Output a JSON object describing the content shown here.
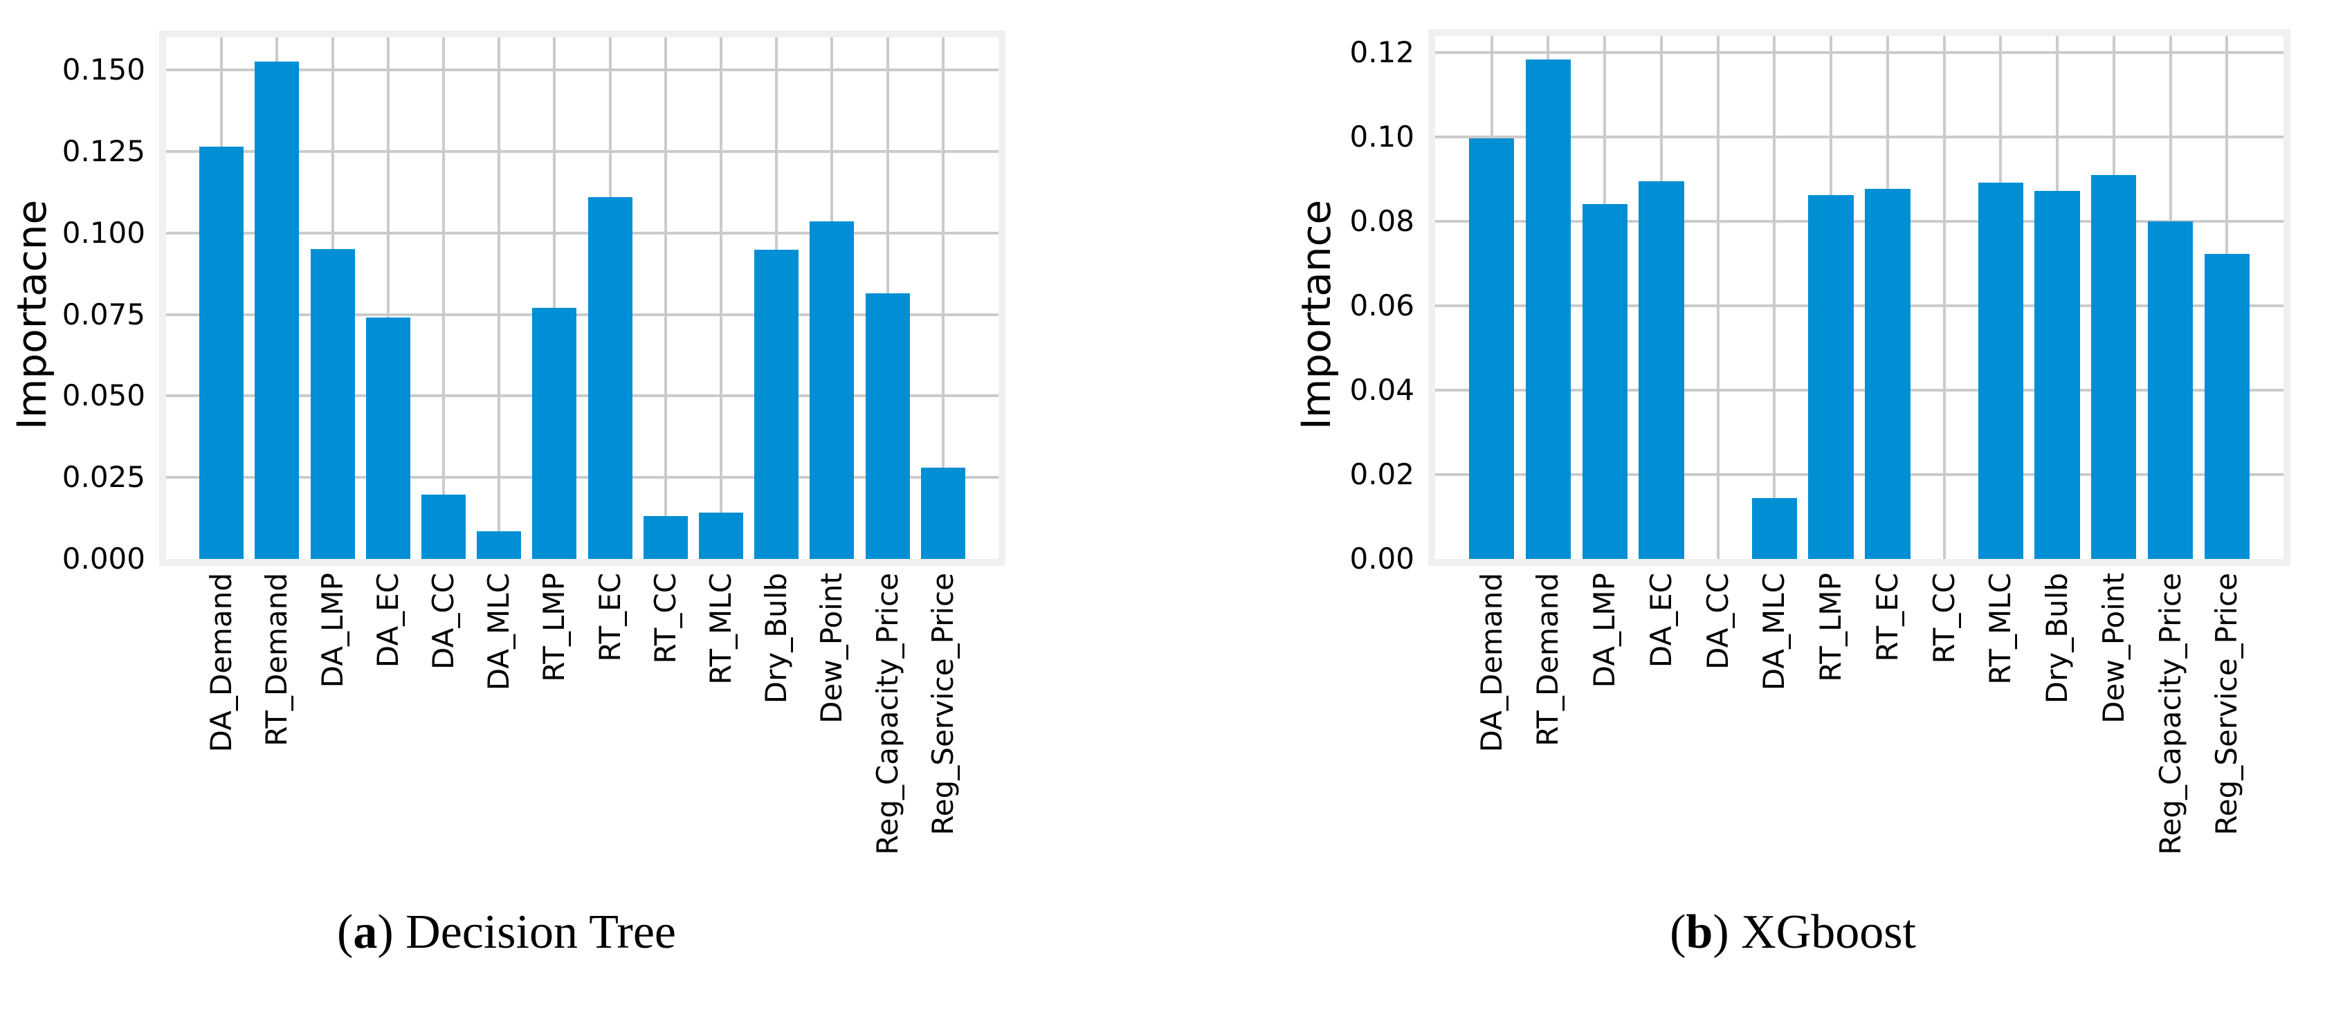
{
  "figure": {
    "background": "#ffffff",
    "bar_color": "#008fd5",
    "grid_color": "#cbcbcb",
    "frame_color": "#f0f0f0",
    "text_color": "#000000"
  },
  "chart_data": [
    {
      "id": "decision-tree",
      "type": "bar",
      "caption": "(a) Decision Tree",
      "caption_parts": {
        "open": "(",
        "letter": "a",
        "rest": ") Decision Tree"
      },
      "ylabel": "Importacne",
      "xlabel": "",
      "grid": true,
      "legend_position": "none",
      "categories": [
        "DA_Demand",
        "RT_Demand",
        "DA_LMP",
        "DA_EC",
        "DA_CC",
        "DA_MLC",
        "RT_LMP",
        "RT_EC",
        "RT_CC",
        "RT_MLC",
        "Dry_Bulb",
        "Dew_Point",
        "Reg_Capacity_Price",
        "Reg_Service_Price"
      ],
      "values": [
        0.1265,
        0.1525,
        0.095,
        0.074,
        0.0197,
        0.0085,
        0.077,
        0.111,
        0.0132,
        0.0143,
        0.0948,
        0.1035,
        0.0815,
        0.028
      ],
      "ylim": [
        0,
        0.16
      ],
      "ytick_labels": [
        "0.000",
        "0.025",
        "0.050",
        "0.075",
        "0.100",
        "0.125",
        "0.150"
      ],
      "ytick_values": [
        0,
        0.025,
        0.05,
        0.075,
        0.1,
        0.125,
        0.15
      ]
    },
    {
      "id": "xgboost",
      "type": "bar",
      "caption": "(b) XGboost",
      "caption_parts": {
        "open": "(",
        "letter": "b",
        "rest": ") XGboost"
      },
      "ylabel": "Importance",
      "xlabel": "",
      "grid": true,
      "legend_position": "none",
      "categories": [
        "DA_Demand",
        "RT_Demand",
        "DA_LMP",
        "DA_EC",
        "DA_CC",
        "DA_MLC",
        "RT_LMP",
        "RT_EC",
        "RT_CC",
        "RT_MLC",
        "Dry_Bulb",
        "Dew_Point",
        "Reg_Capacity_Price",
        "Reg_Service_Price"
      ],
      "values": [
        0.0997,
        0.1185,
        0.0841,
        0.0896,
        0.0,
        0.0144,
        0.0862,
        0.0877,
        0.0,
        0.0893,
        0.0872,
        0.091,
        0.0801,
        0.0724
      ],
      "ylim": [
        0,
        0.124
      ],
      "ytick_labels": [
        "0.00",
        "0.02",
        "0.04",
        "0.06",
        "0.08",
        "0.10",
        "0.12"
      ],
      "ytick_values": [
        0,
        0.02,
        0.04,
        0.06,
        0.08,
        0.1,
        0.12
      ]
    }
  ]
}
